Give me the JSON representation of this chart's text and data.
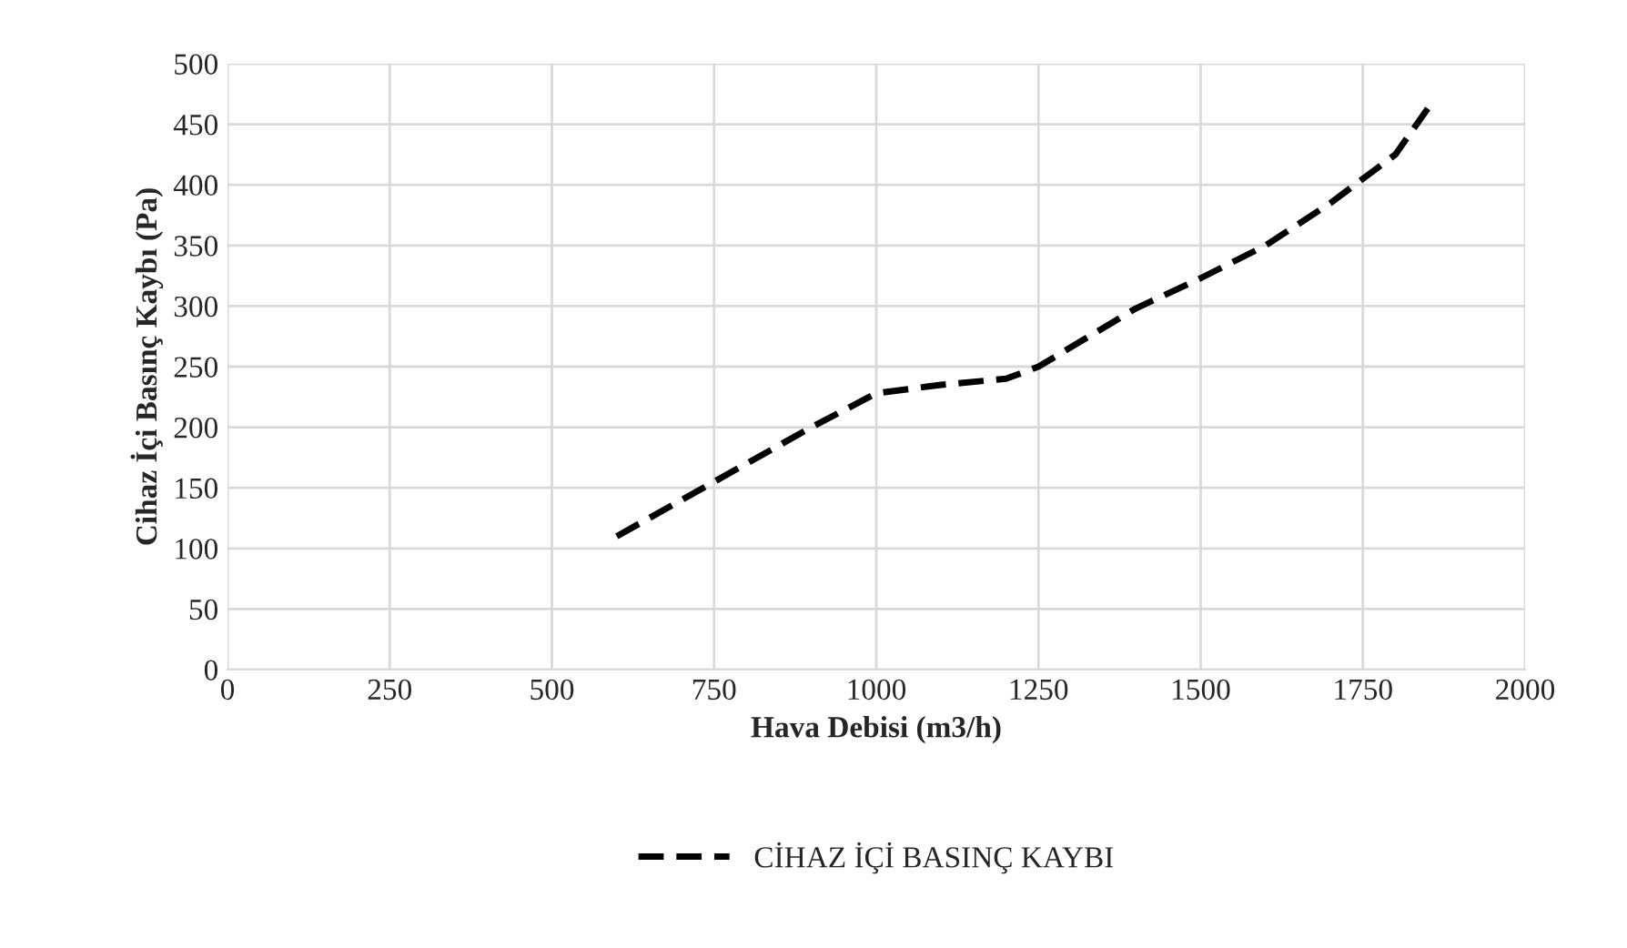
{
  "chart_data": {
    "type": "line",
    "xlabel": "Hava Debisi (m3/h)",
    "ylabel": "Cihaz İçi Basınç Kaybı (Pa)",
    "xlim": [
      0,
      2000
    ],
    "xticks": [
      0,
      250,
      500,
      750,
      1000,
      1250,
      1500,
      1750,
      2000
    ],
    "ylim": [
      0,
      500
    ],
    "yticks": [
      0,
      50,
      100,
      150,
      200,
      250,
      300,
      350,
      400,
      450,
      500
    ],
    "grid": true,
    "legend": "bottom",
    "line_style": "dashed",
    "marker": "none",
    "series": [
      {
        "name": "CİHAZ İÇİ BASINÇ KAYBI",
        "color": "#000000",
        "x": [
          600,
          750,
          900,
          1000,
          1100,
          1200,
          1250,
          1400,
          1500,
          1600,
          1700,
          1800,
          1850
        ],
        "values": [
          110,
          155,
          200,
          228,
          235,
          240,
          250,
          298,
          323,
          350,
          385,
          425,
          463
        ]
      }
    ]
  }
}
